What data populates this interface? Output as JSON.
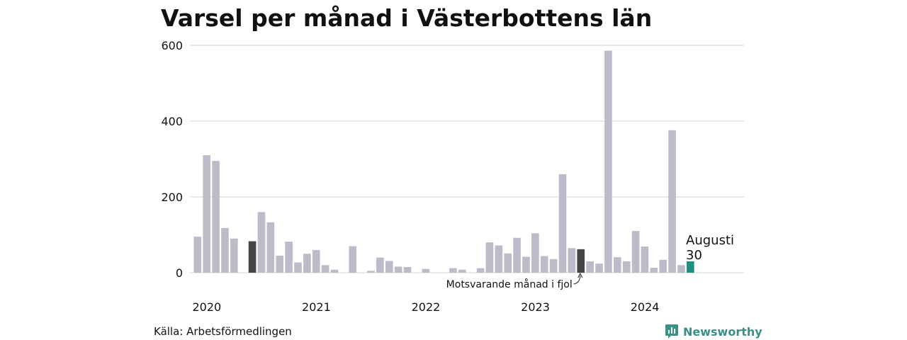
{
  "title": "Varsel per månad i Västerbottens län",
  "source": "Källa: Arbetsförmedlingen",
  "brand": {
    "name": "Newsworthy",
    "color": "#3a8f86",
    "icon": "newsworthy-logo-icon"
  },
  "colors": {
    "default": "#bdbac9",
    "highlight": "#444444",
    "current": "#1c9080",
    "grid": "#dddddd"
  },
  "chart_data": {
    "type": "bar",
    "title": "Varsel per månad i Västerbottens län",
    "ylim": [
      0,
      600
    ],
    "yticks": [
      0,
      200,
      400,
      600
    ],
    "grid": true,
    "year_labels": [
      {
        "label": "2020",
        "index": 0
      },
      {
        "label": "2021",
        "index": 12
      },
      {
        "label": "2022",
        "index": 24
      },
      {
        "label": "2023",
        "index": 36
      },
      {
        "label": "2024",
        "index": 48
      }
    ],
    "values": [
      95,
      310,
      295,
      118,
      90,
      0,
      83,
      160,
      133,
      45,
      82,
      27,
      50,
      60,
      20,
      8,
      0,
      70,
      0,
      5,
      40,
      31,
      16,
      15,
      0,
      10,
      0,
      0,
      12,
      8,
      0,
      12,
      80,
      72,
      51,
      92,
      42,
      104,
      44,
      36,
      260,
      65,
      62,
      30,
      24,
      586,
      41,
      30,
      110,
      69,
      13,
      34,
      376,
      20,
      30
    ],
    "highlight_indices": [
      6,
      42
    ],
    "current_index": 54,
    "annotations": [
      {
        "text": "Motsvarande månad i fjol",
        "index": 42
      },
      {
        "text": "Augusti",
        "index": 54
      },
      {
        "text": "30",
        "index": 54
      }
    ]
  }
}
